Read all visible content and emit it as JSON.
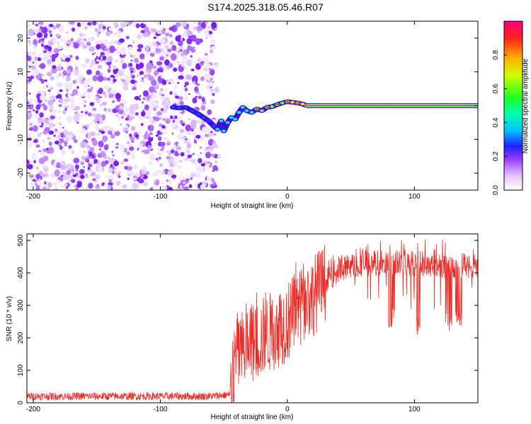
{
  "title": "S174.2025.318.05.46.R07",
  "chart_data": [
    {
      "type": "heatmap",
      "name": "spectrogram",
      "xlabel": "Height of straight line (km)",
      "ylabel": "Frequency (Hz)",
      "xlim": [
        -205,
        150
      ],
      "ylim": [
        -25,
        25
      ],
      "xticks": [
        -200,
        -100,
        0,
        100
      ],
      "yticks": [
        -20,
        -10,
        0,
        10,
        20
      ],
      "noise_region_x": [
        -205,
        -55
      ],
      "signal_track": [
        {
          "x": -90,
          "y": -0.5
        },
        {
          "x": -85,
          "y": -0.7
        },
        {
          "x": -80,
          "y": -0.5
        },
        {
          "x": -75,
          "y": -1.5
        },
        {
          "x": -70,
          "y": -2.5
        },
        {
          "x": -66,
          "y": -3.5
        },
        {
          "x": -62,
          "y": -4.5
        },
        {
          "x": -58,
          "y": -6.0
        },
        {
          "x": -55,
          "y": -7.0
        },
        {
          "x": -52,
          "y": -4.5
        },
        {
          "x": -50,
          "y": -7.5
        },
        {
          "x": -47,
          "y": -5.0
        },
        {
          "x": -44,
          "y": -3.5
        },
        {
          "x": -41,
          "y": -4.0
        },
        {
          "x": -38,
          "y": -2.0
        },
        {
          "x": -35,
          "y": -0.5
        },
        {
          "x": -32,
          "y": -1.5
        },
        {
          "x": -28,
          "y": -2.0
        },
        {
          "x": -24,
          "y": -1.0
        },
        {
          "x": -20,
          "y": -1.5
        },
        {
          "x": -16,
          "y": -0.5
        },
        {
          "x": -12,
          "y": -0.3
        },
        {
          "x": -8,
          "y": 0.3
        },
        {
          "x": -4,
          "y": 0.8
        },
        {
          "x": 0,
          "y": 1.2
        },
        {
          "x": 4,
          "y": 1.0
        },
        {
          "x": 8,
          "y": 0.8
        },
        {
          "x": 12,
          "y": 0.5
        },
        {
          "x": 15,
          "y": 0.0
        }
      ],
      "carrier_line": {
        "x_start": 15,
        "x_end": 150,
        "y": 0
      },
      "colorbar": {
        "label": "Normalized spectral amplitude",
        "range": [
          0,
          1
        ],
        "ticks": [
          "0.0",
          "0.2",
          "0.4",
          "0.6",
          "0.8"
        ],
        "tick_values": [
          0.0,
          0.2,
          0.4,
          0.6,
          0.8
        ]
      }
    },
    {
      "type": "line",
      "name": "snr",
      "xlabel": "Height of straight line (km)",
      "ylabel": "SNR (10 * v/v)",
      "xlim": [
        -205,
        150
      ],
      "ylim": [
        0,
        520
      ],
      "xticks": [
        -200,
        -100,
        0,
        100
      ],
      "yticks": [
        0,
        100,
        200,
        300,
        400,
        500
      ],
      "color": "#ee2a24",
      "series_profile": [
        {
          "x": -205,
          "y": 20
        },
        {
          "x": -60,
          "y": 20
        },
        {
          "x": -45,
          "y": 25
        },
        {
          "x": -40,
          "y": 150
        },
        {
          "x": -20,
          "y": 200
        },
        {
          "x": 0,
          "y": 250
        },
        {
          "x": 20,
          "y": 330
        },
        {
          "x": 40,
          "y": 410
        },
        {
          "x": 60,
          "y": 430
        },
        {
          "x": 100,
          "y": 430
        },
        {
          "x": 150,
          "y": 420
        }
      ],
      "dips": [
        {
          "x": 82,
          "y": 230
        },
        {
          "x": 102,
          "y": 210
        },
        {
          "x": 127,
          "y": 215
        },
        {
          "x": 135,
          "y": 225
        }
      ]
    }
  ]
}
